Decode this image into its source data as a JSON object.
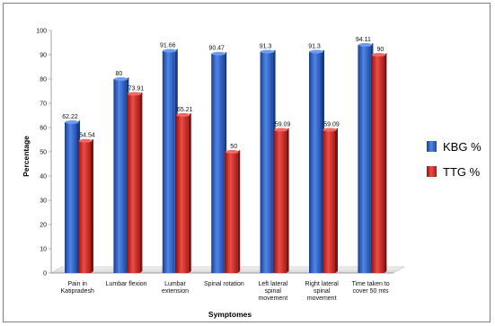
{
  "chart_data": {
    "type": "bar",
    "title": "",
    "xlabel": "Symptomes",
    "ylabel": "Percentage",
    "ylim": [
      0,
      100
    ],
    "yticks": [
      0,
      10,
      20,
      30,
      40,
      50,
      60,
      70,
      80,
      90,
      100
    ],
    "grid": false,
    "legend": "right",
    "categories": [
      [
        "Pain in",
        "Katipradesh"
      ],
      [
        "Lumbar flexion"
      ],
      [
        "Lumbar",
        "extension"
      ],
      [
        "Spinal rotation"
      ],
      [
        "Left lateral",
        "spinal",
        "movement"
      ],
      [
        "Right lateral",
        "spinal",
        "movement"
      ],
      [
        "Time taken to",
        "cover 50 mts"
      ]
    ],
    "series": [
      {
        "name": "KBG %",
        "color": "#2e62c9",
        "values": [
          62.22,
          80,
          91.66,
          90.47,
          91.3,
          91.3,
          94.11
        ],
        "labels": [
          "62.22",
          "80",
          "91.66",
          "90.47",
          "91.3",
          "91.3",
          "94.11"
        ]
      },
      {
        "name": "TTG %",
        "color": "#d8332f",
        "values": [
          54.54,
          73.91,
          65.21,
          50,
          59.09,
          59.09,
          90
        ],
        "labels": [
          "54.54",
          "73.91",
          "65.21",
          "50",
          "59.09",
          "59.09",
          "90"
        ]
      }
    ]
  }
}
